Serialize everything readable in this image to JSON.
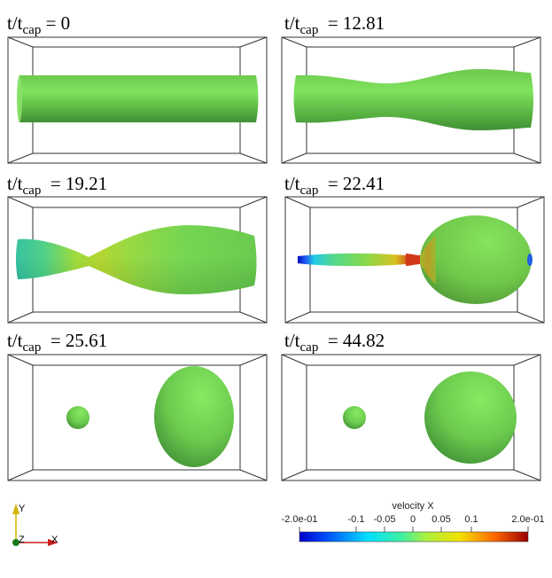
{
  "panels": [
    {
      "prefix": "t/t",
      "sub": "cap",
      "eq": " = 0"
    },
    {
      "prefix": "t/t",
      "sub": "cap",
      "eq": "  = 12.81"
    },
    {
      "prefix": "t/t",
      "sub": "cap",
      "eq": "  = 19.21"
    },
    {
      "prefix": "t/t",
      "sub": "cap",
      "eq": "  = 22.41"
    },
    {
      "prefix": "t/t",
      "sub": "cap",
      "eq": "  = 25.61"
    },
    {
      "prefix": "t/t",
      "sub": "cap",
      "eq": "  = 44.82"
    }
  ],
  "colorbar": {
    "title": "velocity X",
    "ticks": [
      "-2.0e-01",
      "-0.1",
      "-0.05",
      "0",
      "0.05",
      "0.1",
      "2.0e-01"
    ],
    "colors": {
      "blue": "#0000c8",
      "cyan": "#00e0ff",
      "green": "#7ee85a",
      "yellow": "#f2e200",
      "red": "#9a0000"
    }
  },
  "axes": {
    "y": "Y",
    "z": "Z",
    "x": "X",
    "colors": {
      "y": "#d4b400",
      "z": "#1a7a1a",
      "x": "#c81e1e"
    }
  }
}
